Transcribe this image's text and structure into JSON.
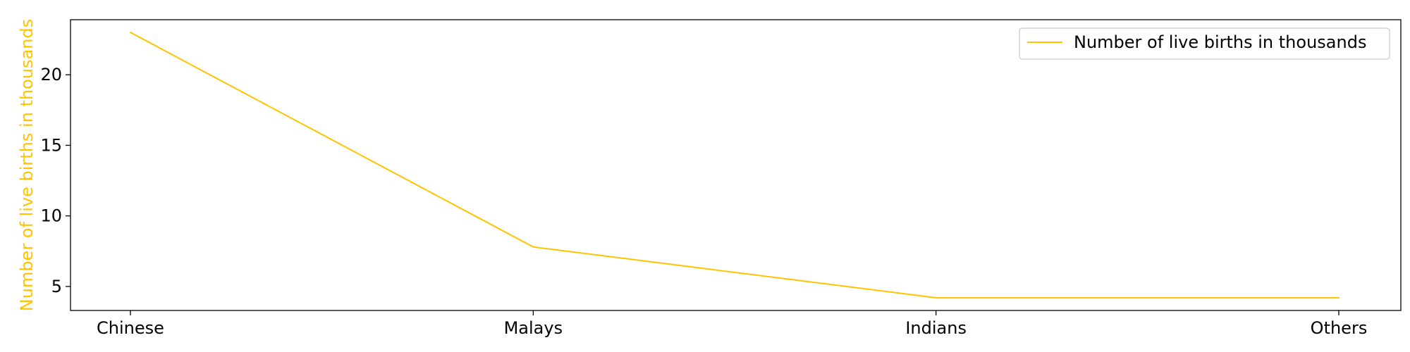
{
  "chart_data": {
    "type": "line",
    "categories": [
      "Chinese",
      "Malays",
      "Indians",
      "Others"
    ],
    "series": [
      {
        "name": "Number of live births in thousands",
        "values": [
          23.0,
          7.8,
          4.2,
          4.2
        ],
        "color": "#FFC400"
      }
    ],
    "title": "",
    "xlabel": "",
    "ylabel": "Number of live births in thousands",
    "ylabel_color": "#FFC400",
    "ylim": [
      3.3,
      23.9
    ],
    "yticks": [
      5,
      10,
      15,
      20
    ],
    "grid": false,
    "legend_position": "top-right"
  }
}
